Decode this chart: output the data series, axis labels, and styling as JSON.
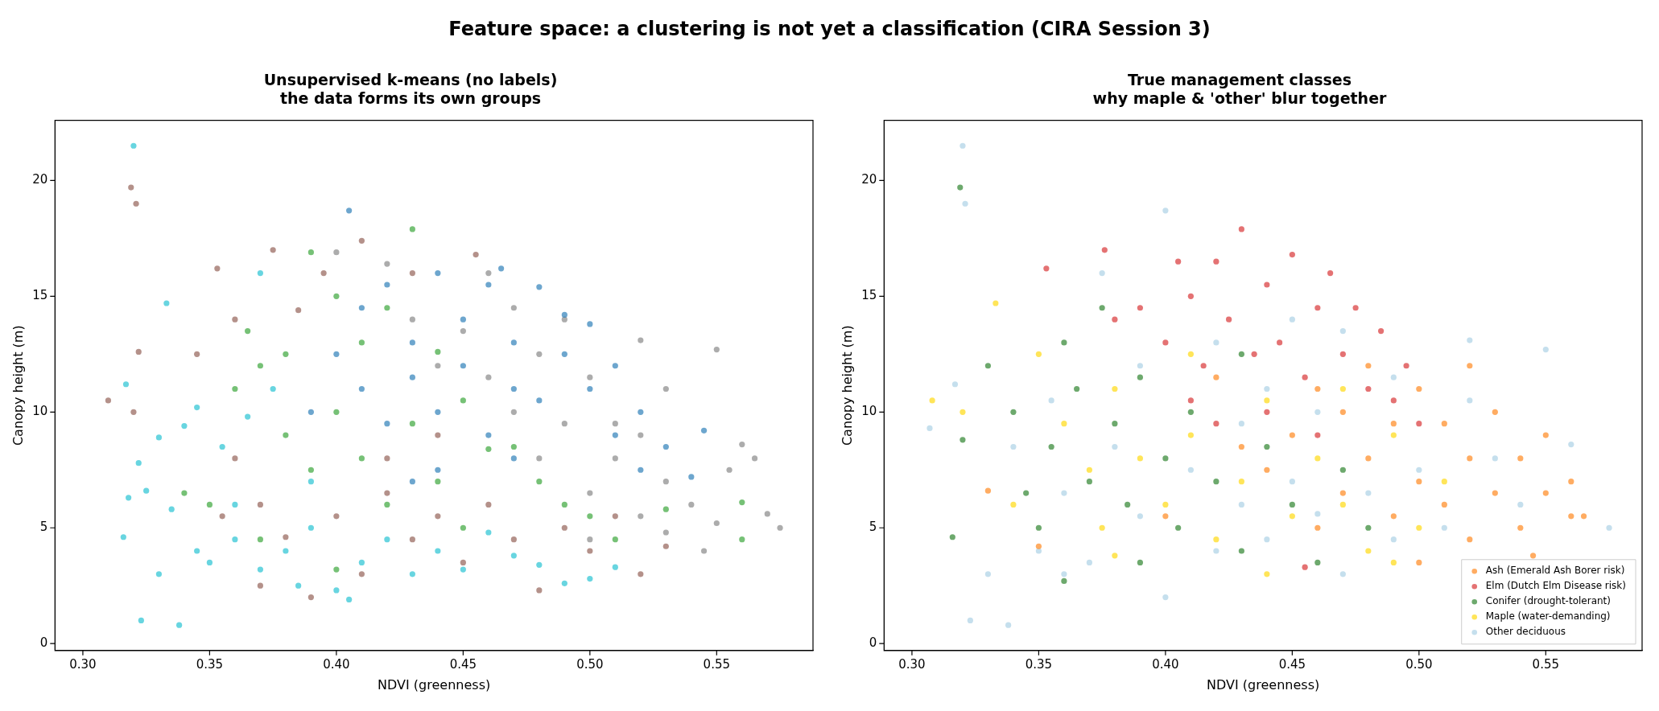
{
  "chart_data": [
    {
      "type": "scatter",
      "title": "Unsupervised k-means (no labels)\nthe data forms its own groups",
      "xlabel": "NDVI (greenness)",
      "ylabel": "Canopy height (m)",
      "annotations": [
        "Feature space: a clustering is not yet a classification (CIRA Session 3)"
      ],
      "xlim": [
        0.289,
        0.588
      ],
      "ylim": [
        -0.3,
        22.6
      ],
      "xticks": [
        {
          "value": 0.3,
          "label": "0.30"
        },
        0.35,
        {
          "value": 0.4,
          "label": "0.40"
        },
        0.45,
        {
          "value": 0.5,
          "label": "0.50"
        },
        0.55
      ],
      "yticks": [
        0,
        5,
        10,
        15,
        20
      ],
      "grid": false,
      "legend": false,
      "marker": "circle",
      "series": [
        {
          "color": "#17becf",
          "x": [
            0.32,
            0.317,
            0.318,
            0.316,
            0.322,
            0.323,
            0.33,
            0.333,
            0.335,
            0.338,
            0.34,
            0.345,
            0.35,
            0.355,
            0.36,
            0.365,
            0.37,
            0.375,
            0.38,
            0.385,
            0.39,
            0.4,
            0.405,
            0.41,
            0.42,
            0.43,
            0.44,
            0.45,
            0.46,
            0.47,
            0.48,
            0.49,
            0.5,
            0.51,
            0.37,
            0.36,
            0.33,
            0.325,
            0.345,
            0.39
          ],
          "values": [
            21.5,
            11.2,
            6.3,
            4.6,
            7.8,
            1.0,
            3.0,
            14.7,
            5.8,
            0.8,
            9.4,
            4.0,
            3.5,
            8.5,
            4.5,
            9.8,
            3.2,
            11.0,
            4.0,
            2.5,
            5.0,
            2.3,
            1.9,
            3.5,
            4.5,
            3.0,
            4.0,
            3.2,
            4.8,
            3.8,
            3.4,
            2.6,
            2.8,
            3.3,
            16.0,
            6.0,
            8.9,
            6.6,
            10.2,
            7.0
          ]
        },
        {
          "color": "#1f77b4",
          "x": [
            0.405,
            0.41,
            0.42,
            0.43,
            0.44,
            0.45,
            0.46,
            0.465,
            0.47,
            0.48,
            0.49,
            0.5,
            0.41,
            0.42,
            0.43,
            0.44,
            0.45,
            0.46,
            0.47,
            0.48,
            0.49,
            0.5,
            0.51,
            0.52,
            0.53,
            0.545,
            0.54,
            0.4,
            0.39,
            0.44,
            0.47,
            0.43,
            0.51,
            0.52
          ],
          "values": [
            18.7,
            14.5,
            15.5,
            13.0,
            16.0,
            14.0,
            15.5,
            16.2,
            13.0,
            15.4,
            14.2,
            13.8,
            11.0,
            9.5,
            11.5,
            10.0,
            12.0,
            9.0,
            11.0,
            10.5,
            12.5,
            11.0,
            9.0,
            10.0,
            8.5,
            9.2,
            7.2,
            12.5,
            10.0,
            7.5,
            8.0,
            7.0,
            12.0,
            7.5
          ]
        },
        {
          "color": "#7f7f7f",
          "x": [
            0.46,
            0.47,
            0.48,
            0.49,
            0.5,
            0.51,
            0.52,
            0.53,
            0.55,
            0.56,
            0.575,
            0.57,
            0.565,
            0.555,
            0.55,
            0.545,
            0.54,
            0.53,
            0.52,
            0.51,
            0.5,
            0.49,
            0.48,
            0.47,
            0.46,
            0.45,
            0.44,
            0.43,
            0.42,
            0.4,
            0.5,
            0.53,
            0.52
          ],
          "values": [
            16.0,
            14.5,
            12.5,
            14.0,
            11.5,
            9.5,
            13.1,
            11.0,
            12.7,
            8.6,
            5.0,
            5.6,
            8.0,
            7.5,
            5.2,
            4.0,
            6.0,
            7.0,
            5.5,
            8.0,
            6.5,
            9.5,
            8.0,
            10.0,
            11.5,
            13.5,
            12.0,
            14.0,
            16.4,
            16.9,
            4.5,
            4.8,
            9.0
          ]
        },
        {
          "color": "#8c564b",
          "x": [
            0.319,
            0.321,
            0.31,
            0.32,
            0.322,
            0.345,
            0.353,
            0.36,
            0.375,
            0.385,
            0.395,
            0.41,
            0.43,
            0.455,
            0.36,
            0.37,
            0.38,
            0.39,
            0.4,
            0.41,
            0.42,
            0.43,
            0.44,
            0.45,
            0.46,
            0.47,
            0.48,
            0.49,
            0.5,
            0.51,
            0.52,
            0.53,
            0.42,
            0.44,
            0.37,
            0.355
          ],
          "values": [
            19.7,
            19.0,
            10.5,
            10.0,
            12.6,
            12.5,
            16.2,
            14.0,
            17.0,
            14.4,
            16.0,
            17.4,
            16.0,
            16.8,
            8.0,
            6.0,
            4.6,
            2.0,
            5.5,
            3.0,
            6.5,
            4.5,
            5.5,
            3.5,
            6.0,
            4.5,
            2.3,
            5.0,
            4.0,
            5.5,
            3.0,
            4.2,
            8.0,
            9.0,
            2.5,
            5.5
          ]
        },
        {
          "color": "#2ca02c",
          "x": [
            0.34,
            0.35,
            0.36,
            0.365,
            0.37,
            0.38,
            0.39,
            0.4,
            0.41,
            0.42,
            0.43,
            0.44,
            0.45,
            0.46,
            0.47,
            0.48,
            0.49,
            0.5,
            0.51,
            0.53,
            0.56,
            0.56,
            0.38,
            0.39,
            0.4,
            0.41,
            0.42,
            0.43,
            0.44,
            0.45,
            0.37,
            0.4
          ],
          "values": [
            6.5,
            6.0,
            11.0,
            13.5,
            12.0,
            12.5,
            16.9,
            15.0,
            13.0,
            14.5,
            17.9,
            12.6,
            10.5,
            8.4,
            8.5,
            7.0,
            6.0,
            5.5,
            4.5,
            5.8,
            6.1,
            4.5,
            9.0,
            7.5,
            10.0,
            8.0,
            6.0,
            9.5,
            7.0,
            5.0,
            4.5,
            3.2
          ]
        }
      ]
    },
    {
      "type": "scatter",
      "title": "True management classes\nwhy maple & 'other' blur together",
      "xlabel": "NDVI (greenness)",
      "ylabel": "Canopy height (m)",
      "xlim": [
        0.289,
        0.588
      ],
      "ylim": [
        -0.3,
        22.6
      ],
      "xticks": [
        {
          "value": 0.3,
          "label": "0.30"
        },
        0.35,
        {
          "value": 0.4,
          "label": "0.40"
        },
        0.45,
        {
          "value": 0.5,
          "label": "0.50"
        },
        0.55
      ],
      "yticks": [
        0,
        5,
        10,
        15,
        20
      ],
      "grid": false,
      "legend": "bottom right",
      "marker": "circle",
      "series": [
        {
          "name": "Ash (Emerald Ash Borer risk)",
          "color": "#ff7f0e",
          "x": [
            0.33,
            0.35,
            0.44,
            0.45,
            0.46,
            0.47,
            0.47,
            0.48,
            0.48,
            0.49,
            0.49,
            0.5,
            0.5,
            0.51,
            0.51,
            0.52,
            0.52,
            0.53,
            0.53,
            0.54,
            0.54,
            0.55,
            0.55,
            0.56,
            0.56,
            0.565,
            0.545,
            0.5,
            0.46,
            0.43,
            0.4,
            0.42,
            0.52
          ],
          "values": [
            6.6,
            4.2,
            7.5,
            9.0,
            11.0,
            6.5,
            10.0,
            8.0,
            12.0,
            5.5,
            9.5,
            7.0,
            11.0,
            6.0,
            9.5,
            4.5,
            8.0,
            10.0,
            6.5,
            8.0,
            5.0,
            9.0,
            6.5,
            7.0,
            5.5,
            5.5,
            3.8,
            3.5,
            5.0,
            8.5,
            5.5,
            11.5,
            12.0
          ]
        },
        {
          "name": "Elm (Dutch Elm Disease risk)",
          "color": "#d62728",
          "x": [
            0.376,
            0.38,
            0.39,
            0.4,
            0.405,
            0.41,
            0.415,
            0.42,
            0.425,
            0.43,
            0.435,
            0.44,
            0.445,
            0.45,
            0.455,
            0.46,
            0.465,
            0.47,
            0.475,
            0.48,
            0.485,
            0.49,
            0.495,
            0.5,
            0.44,
            0.42,
            0.46,
            0.455,
            0.41,
            0.353
          ],
          "values": [
            17.0,
            14.0,
            14.5,
            13.0,
            16.5,
            15.0,
            12.0,
            16.5,
            14.0,
            17.9,
            12.5,
            15.5,
            13.0,
            16.8,
            11.5,
            14.5,
            16.0,
            12.5,
            14.5,
            11.0,
            13.5,
            10.5,
            12.0,
            9.5,
            10.0,
            9.5,
            9.0,
            3.3,
            10.5,
            16.2
          ]
        },
        {
          "name": "Conifer (drought-tolerant)",
          "color": "#1e7b1e",
          "x": [
            0.319,
            0.32,
            0.316,
            0.33,
            0.34,
            0.345,
            0.35,
            0.355,
            0.36,
            0.365,
            0.37,
            0.375,
            0.38,
            0.385,
            0.39,
            0.4,
            0.405,
            0.41,
            0.42,
            0.43,
            0.44,
            0.45,
            0.46,
            0.47,
            0.48,
            0.39,
            0.36,
            0.43
          ],
          "values": [
            19.7,
            8.8,
            4.6,
            12.0,
            10.0,
            6.5,
            5.0,
            8.5,
            13.0,
            11.0,
            7.0,
            14.5,
            9.5,
            6.0,
            11.5,
            8.0,
            5.0,
            10.0,
            7.0,
            4.0,
            8.5,
            6.0,
            3.5,
            7.5,
            5.0,
            3.5,
            2.7,
            12.5
          ]
        },
        {
          "name": "Maple (water-demanding)",
          "color": "#ffd700",
          "x": [
            0.308,
            0.32,
            0.333,
            0.34,
            0.35,
            0.36,
            0.37,
            0.375,
            0.38,
            0.39,
            0.4,
            0.41,
            0.42,
            0.43,
            0.44,
            0.45,
            0.46,
            0.47,
            0.48,
            0.49,
            0.5,
            0.51,
            0.49,
            0.44,
            0.38,
            0.41,
            0.47
          ],
          "values": [
            10.5,
            10.0,
            14.7,
            6.0,
            12.5,
            9.5,
            7.5,
            5.0,
            11.0,
            8.0,
            6.0,
            9.0,
            4.5,
            7.0,
            10.5,
            5.5,
            8.0,
            6.0,
            4.0,
            9.0,
            5.0,
            7.0,
            3.5,
            3.0,
            3.8,
            12.5,
            11.0
          ]
        },
        {
          "name": "Other deciduous",
          "color": "#a6cee3",
          "x": [
            0.32,
            0.321,
            0.307,
            0.317,
            0.323,
            0.338,
            0.33,
            0.34,
            0.35,
            0.355,
            0.36,
            0.37,
            0.375,
            0.38,
            0.39,
            0.39,
            0.4,
            0.4,
            0.41,
            0.42,
            0.42,
            0.43,
            0.43,
            0.44,
            0.44,
            0.45,
            0.45,
            0.46,
            0.46,
            0.47,
            0.47,
            0.48,
            0.49,
            0.49,
            0.5,
            0.51,
            0.52,
            0.53,
            0.55,
            0.56,
            0.575,
            0.54,
            0.52,
            0.36
          ],
          "values": [
            21.5,
            19.0,
            9.3,
            11.2,
            1.0,
            0.8,
            3.0,
            8.5,
            4.0,
            10.5,
            6.5,
            3.5,
            16.0,
            8.5,
            12.0,
            5.5,
            18.7,
            2.0,
            7.5,
            4.0,
            13.0,
            6.0,
            9.5,
            4.5,
            11.0,
            7.0,
            14.0,
            5.6,
            10.0,
            3.0,
            13.5,
            6.5,
            4.5,
            11.5,
            7.5,
            5.0,
            10.5,
            8.0,
            12.7,
            8.6,
            5.0,
            6.0,
            13.1,
            3.0
          ]
        }
      ]
    }
  ]
}
